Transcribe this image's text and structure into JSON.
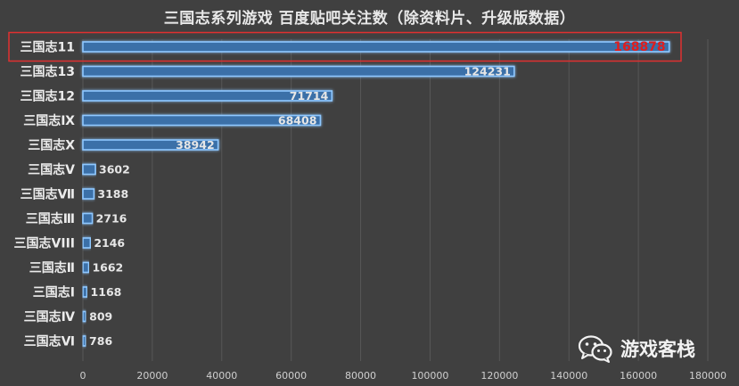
{
  "chart_data": {
    "type": "bar",
    "orientation": "horizontal",
    "title": "三国志系列游戏 百度贴吧关注数（除资料片、升级版数据）",
    "categories": [
      "三国志11",
      "三国志13",
      "三国志12",
      "三国志Ⅸ",
      "三国志Ⅹ",
      "三国志Ⅴ",
      "三国志Ⅶ",
      "三国志Ⅲ",
      "三国志VIII",
      "三国志Ⅱ",
      "三国志Ⅰ",
      "三国志Ⅳ",
      "三国志Ⅵ"
    ],
    "values": [
      168878,
      124231,
      71714,
      68408,
      38942,
      3602,
      3188,
      2716,
      2146,
      1662,
      1168,
      809,
      786
    ],
    "value_labels": [
      "168878",
      "124231",
      "71714",
      "68408",
      "38942",
      "3602",
      "3188",
      "2716",
      "2146",
      "1662",
      "1168",
      "809",
      "786"
    ],
    "xlim": [
      0,
      180000
    ],
    "xticks": [
      0,
      20000,
      40000,
      60000,
      80000,
      100000,
      120000,
      140000,
      160000,
      180000
    ],
    "xtick_labels": [
      "0",
      "20000",
      "40000",
      "60000",
      "80000",
      "100000",
      "120000",
      "140000",
      "160000",
      "180000"
    ],
    "grid": true,
    "highlighted_category": "三国志11",
    "colors": {
      "background": "#404040",
      "bar_fill": "#3b6fa8",
      "bar_glow": "#8fc8ff",
      "gridline": "#575757",
      "value_label": "#e6e6e6",
      "highlight_label": "#e01e1e",
      "highlight_box": "#e03030"
    }
  },
  "watermark": {
    "text": "游戏客栈",
    "icon": "wechat-icon"
  }
}
